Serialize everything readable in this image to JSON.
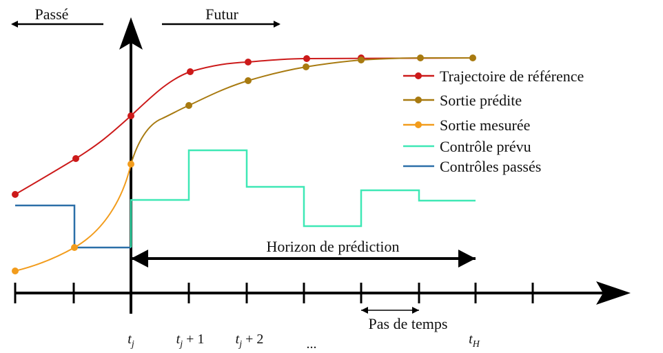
{
  "header": {
    "past": "Passé",
    "future": "Futur"
  },
  "legend": [
    "Trajectoire de référence",
    "Sortie prédite",
    "Sortie mesurée",
    "Contrôle prévu",
    "Contrôles passés"
  ],
  "horizon": "Horizon de prédiction",
  "step": "Pas de temps",
  "ticks": [
    {
      "var": "t",
      "sub": "j"
    },
    {
      "var": "t",
      "sub": "j",
      "rest": " + 1"
    },
    {
      "var": "t",
      "sub": "j",
      "rest": " + 2"
    },
    {
      "text": "..."
    },
    {
      "var": "t",
      "sub": "H"
    }
  ]
}
